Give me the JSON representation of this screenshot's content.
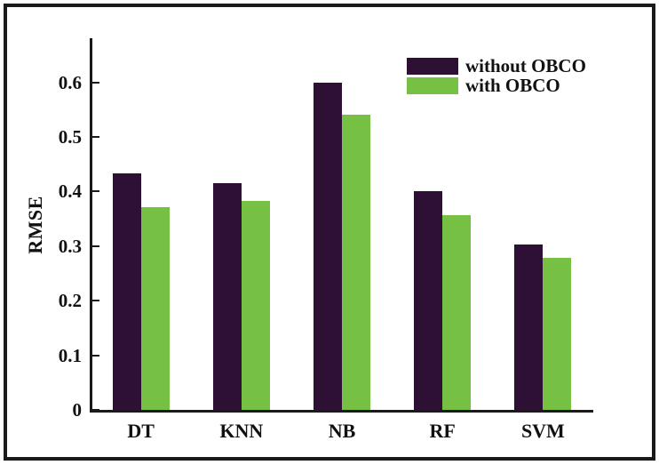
{
  "chart_data": {
    "type": "bar",
    "title": "",
    "xlabel": "",
    "ylabel": "RMSE",
    "categories": [
      "DT",
      "KNN",
      "NB",
      "RF",
      "SVM"
    ],
    "series": [
      {
        "name": "without OBCO",
        "color": "#2E1034",
        "values": [
          0.433,
          0.415,
          0.6,
          0.401,
          0.303
        ]
      },
      {
        "name": "with OBCO",
        "color": "#76C143",
        "values": [
          0.371,
          0.382,
          0.54,
          0.356,
          0.278
        ]
      }
    ],
    "ylim": [
      0,
      0.68
    ],
    "yticks": [
      0,
      0.1,
      0.2,
      0.3,
      0.4,
      0.5,
      0.6
    ],
    "ytick_labels": [
      "0",
      "0.1",
      "0.2",
      "0.3",
      "0.4",
      "0.5",
      "0.6"
    ],
    "grid": false,
    "legend_position": "top-right-inside",
    "axis_color": "#1a1a1a",
    "frame_color": "#1a1a1a",
    "background": "#ffffff"
  }
}
